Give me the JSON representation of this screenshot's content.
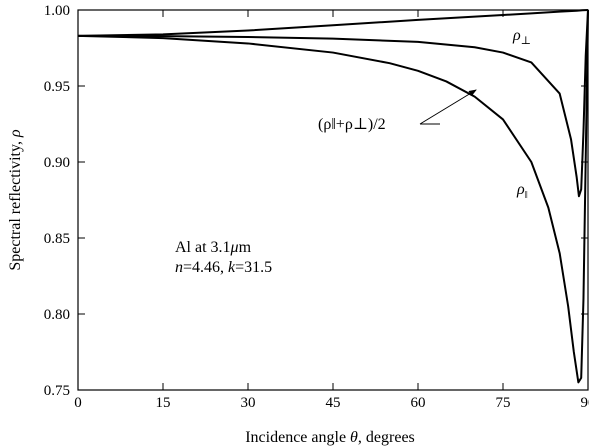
{
  "chart_data": {
    "type": "line",
    "title": "",
    "xlabel_parts": [
      "Incidence angle ",
      "θ",
      ", degrees"
    ],
    "ylabel_parts": [
      "Spectral reflectivity, ",
      "ρ"
    ],
    "xlim": [
      0,
      90
    ],
    "ylim": [
      0.75,
      1.0
    ],
    "xticks": [
      0,
      15,
      30,
      45,
      60,
      75,
      90
    ],
    "yticks": [
      0.75,
      0.8,
      0.85,
      0.9,
      0.95,
      1.0
    ],
    "xtick_labels": [
      "0",
      "15",
      "30",
      "45",
      "60",
      "75",
      "90"
    ],
    "ytick_labels": [
      "0.75",
      "0.80",
      "0.85",
      "0.90",
      "0.95",
      "1.00"
    ],
    "grid": false,
    "series": [
      {
        "name": "ρ⊥",
        "x": [
          0,
          15,
          30,
          45,
          60,
          75,
          80,
          85,
          88,
          89,
          90
        ],
        "y": [
          0.983,
          0.984,
          0.9865,
          0.99,
          0.9935,
          0.9967,
          0.9978,
          0.9989,
          0.9995,
          0.9998,
          1.0
        ]
      },
      {
        "name": "(ρ‖+ρ⊥)/2",
        "x": [
          0,
          15,
          30,
          45,
          60,
          70,
          75,
          80,
          85,
          87,
          88,
          88.4,
          88.8,
          89.2,
          89.6,
          90
        ],
        "y": [
          0.983,
          0.9828,
          0.9822,
          0.9812,
          0.979,
          0.9755,
          0.972,
          0.9655,
          0.945,
          0.915,
          0.89,
          0.8775,
          0.882,
          0.92,
          0.97,
          1.0
        ]
      },
      {
        "name": "ρ‖",
        "x": [
          0,
          15,
          30,
          45,
          55,
          60,
          65,
          70,
          75,
          80,
          83,
          85,
          86.5,
          87.5,
          88.3,
          88.8,
          89.2,
          89.5,
          89.8,
          90
        ],
        "y": [
          0.983,
          0.9815,
          0.978,
          0.972,
          0.965,
          0.96,
          0.953,
          0.943,
          0.928,
          0.9,
          0.87,
          0.84,
          0.805,
          0.775,
          0.755,
          0.758,
          0.81,
          0.88,
          0.95,
          1.0
        ]
      }
    ],
    "annotations": {
      "label_perp": {
        "base": "ρ",
        "sub": "⊥"
      },
      "label_avg": {
        "text": "(ρ‖+ρ⊥)/2"
      },
      "label_par": {
        "base": "ρ",
        "sub": "‖"
      },
      "material_line1": {
        "prefix": "Al at 3.1",
        "mu": "μ",
        "suffix": "m"
      },
      "material_line2": {
        "n": "n",
        "n_val": "=4.46, ",
        "k": "k",
        "k_val": "=31.5"
      }
    }
  }
}
